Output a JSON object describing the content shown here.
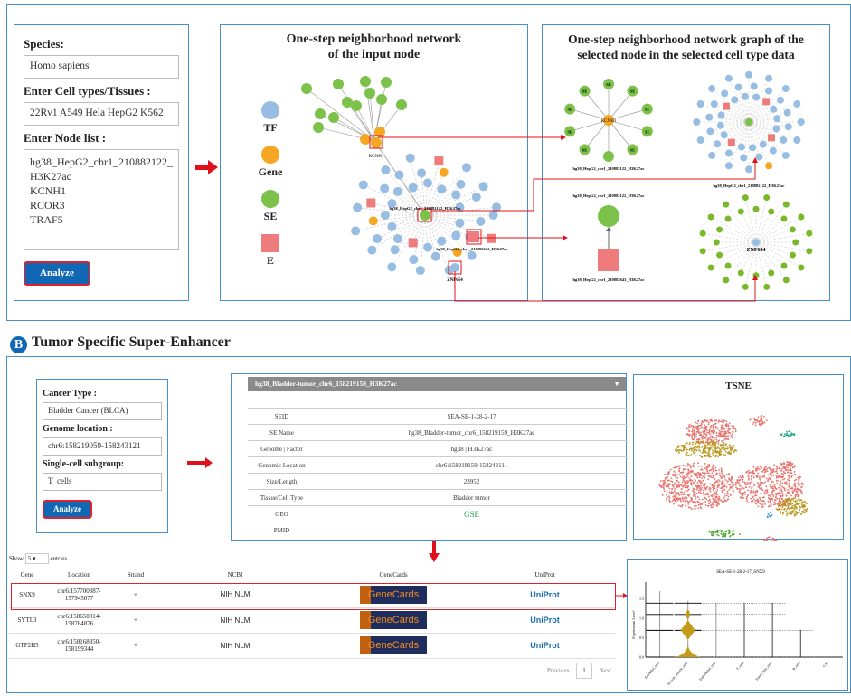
{
  "panel_a": {
    "form": {
      "species_label": "Species:",
      "species_value": "Homo sapiens",
      "cell_label": "Enter Cell types/Tissues :",
      "cell_value": "22Rv1 A549 Hela HepG2 K562",
      "node_label": "Enter Node list :",
      "node_lines": [
        "hg38_HepG2_chr1_210882122_",
        "H3K27ac",
        "KCNH1",
        "RCOR3",
        "TRAF5"
      ],
      "analyze": "Analyze"
    },
    "network1": {
      "title1": "One-step neighborhood network",
      "title2": "of the input node",
      "legend": [
        {
          "label": "TF",
          "color": "#98bde3",
          "shape": "circle"
        },
        {
          "label": "Gene",
          "color": "#f5a623",
          "shape": "circle"
        },
        {
          "label": "SE",
          "color": "#7cc14a",
          "shape": "circle"
        },
        {
          "label": "E",
          "color": "#ee7c7c",
          "shape": "square"
        }
      ],
      "node_kcnh1": "KCNH1",
      "node_se": "hg38_HepG2_chr1_210882122_H3K27ac",
      "node_e": "hg38_HepG2_chr1_210882643_H3K27ac",
      "node_znf": "ZNF654"
    },
    "network2": {
      "title1": "One-step neighborhood network graph of the",
      "title2": "selected node in the selected cell type data",
      "se_tag": "SE",
      "kcnh1": "KCNH1",
      "label_se1": "hg38_HepG2_chr1_210882122_H3K27ac",
      "label_se2": "hg38_HepG2_chr1_210882122_H3K27ac",
      "label_se3": "hg38_HepG2_chr1_210882122_H3K27ac",
      "label_e": "hg38_HepG2_chr1_210882643_H3K27ac",
      "znf": "ZNF654"
    }
  },
  "panel_b": {
    "badge": "B",
    "title": "Tumor Specific Super-Enhancer",
    "form": {
      "cancer_label": "Cancer Type :",
      "cancer_value": "Bladder Cancer (BLCA)",
      "genome_label": "Genome location :",
      "genome_value": "chr6:158219059-158243121",
      "sub_label": "Single-cell subgroup:",
      "sub_value": "T_cells",
      "analyze": "Analyze"
    },
    "se_info": {
      "header": "hg38_Bladder-tumor_chr6_158219159_H3K27ac",
      "rows": [
        [
          "SEID",
          "SEA-SE-1-28-2-17"
        ],
        [
          "SE Name",
          "hg38_Bladder-tumor_chr6_158219159_H3K27ac"
        ],
        [
          "Genome | Factor",
          "hg38 | H3K27ac"
        ],
        [
          "Genomic Location",
          "chr6:158219159-158243111"
        ],
        [
          "Size/Length",
          "23952"
        ],
        [
          "Tissue/Cell Type",
          "Bladder tumor"
        ],
        [
          "GEO",
          "GSE"
        ],
        [
          "PMID",
          ""
        ]
      ]
    },
    "tsne": {
      "title": "TSNE",
      "colors": [
        "#e8706a",
        "#b8961c",
        "#1fa88a",
        "#56a832",
        "#3aa0d8",
        "#9070c0"
      ]
    },
    "table": {
      "show": "Show",
      "entries_value": "5",
      "entries": "entries",
      "headers": [
        "Gene",
        "Location",
        "Strand",
        "NCBI",
        "GeneCards",
        "UniProt"
      ],
      "rows": [
        {
          "gene": "SNX9",
          "loc1": "chr6:157700387-",
          "loc2": "157945077",
          "strand": "+"
        },
        {
          "gene": "SYTL3",
          "loc1": "chr6:158650014-",
          "loc2": "158764876",
          "strand": "+"
        },
        {
          "gene": "GTF2H5",
          "loc1": "chr6:158168350-",
          "loc2": "158199344",
          "strand": "+"
        }
      ],
      "ncbi_logo": "NIH NLM",
      "genecards_logo": "GeneCards",
      "uniprot_logo": "UniProt",
      "previous": "Previous",
      "page": "1",
      "next": "Next"
    },
    "violin": {
      "title": "SEA-SE-1-28-2-17_SNX9",
      "ylabel": "Expression Level",
      "yticks": [
        "0.0",
        "0.5",
        "1.0",
        "1.5"
      ],
      "categories": [
        "Epithelial_cells",
        "Smooth_muscle_cells",
        "Endothelial_cells",
        "T_cells",
        "Tumor_like_cells",
        "B_cells",
        "CAF"
      ]
    }
  }
}
